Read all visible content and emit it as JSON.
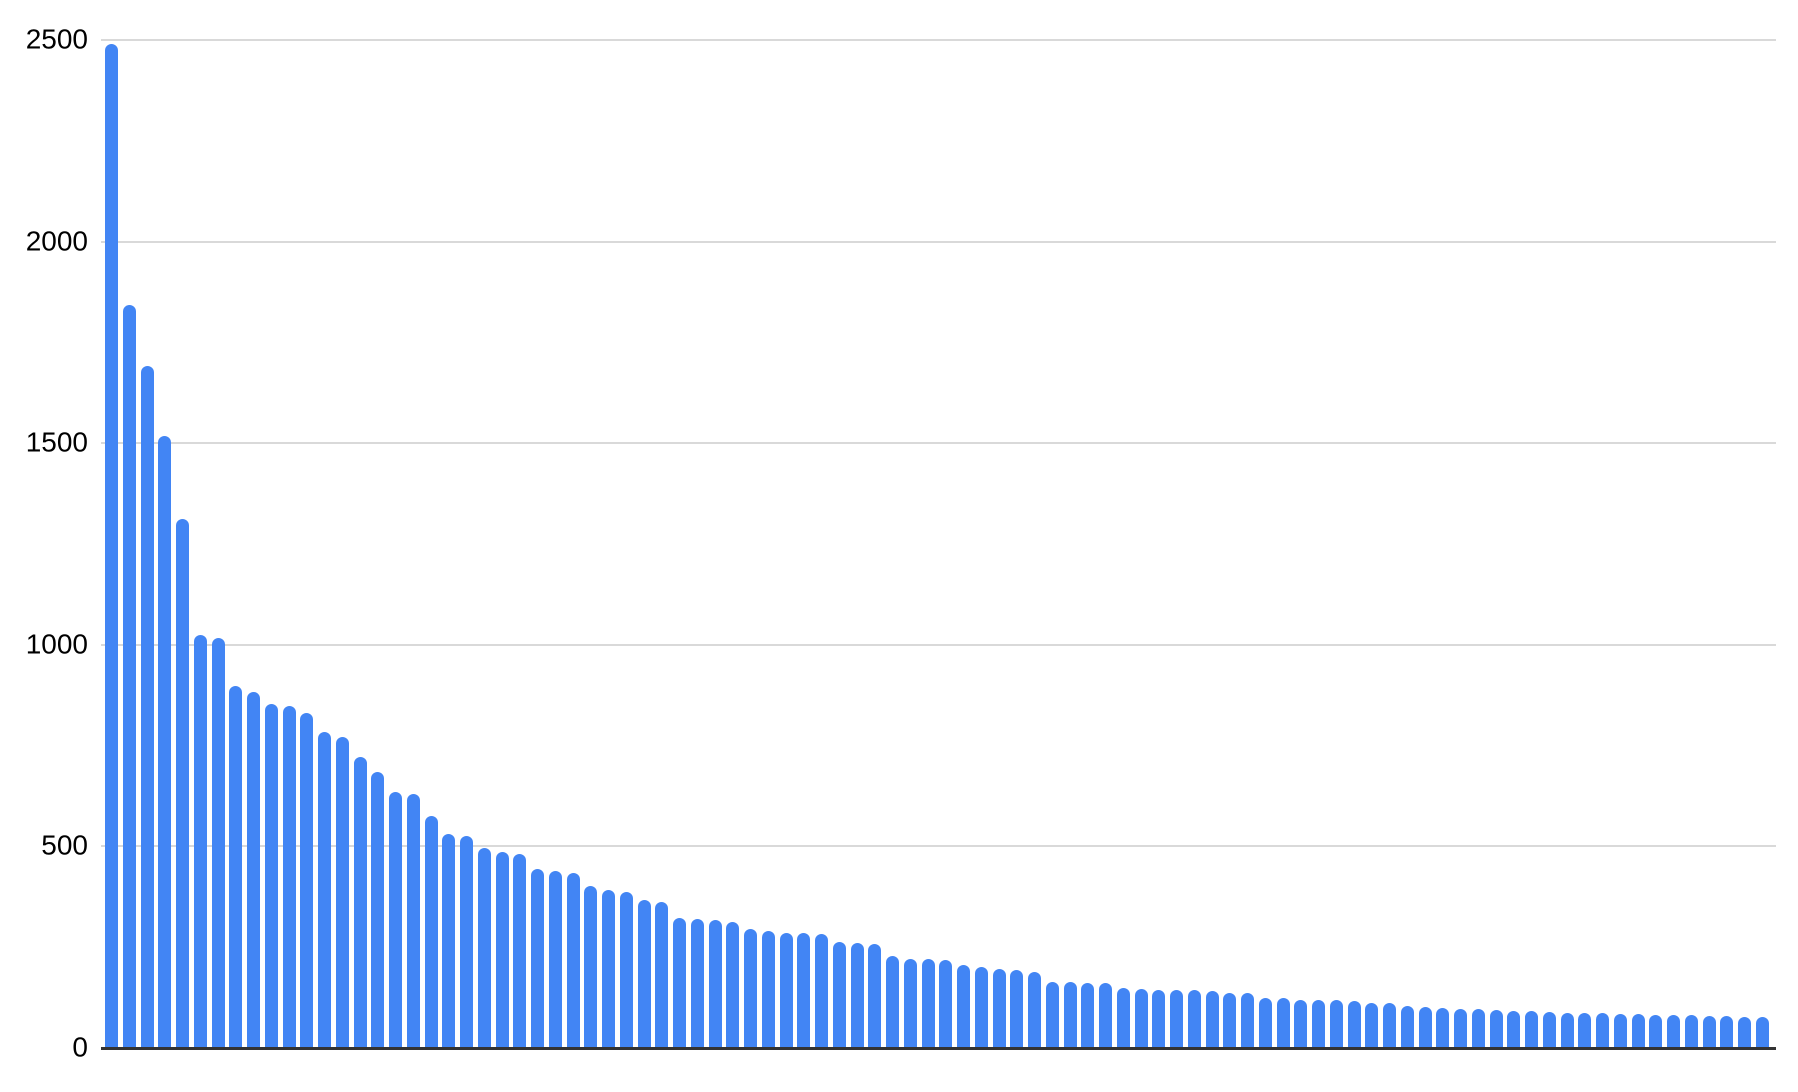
{
  "chart_data": {
    "type": "bar",
    "title": "",
    "xlabel": "",
    "ylabel": "",
    "legend": "none",
    "grid": true,
    "ylim": [
      0,
      2500
    ],
    "y_ticks": [
      0,
      500,
      1000,
      1500,
      2000,
      2500
    ],
    "y_tick_labels": [
      "0",
      "500",
      "1000",
      "1500",
      "2000",
      "2500"
    ],
    "x_axis_labels_visible": false,
    "categories": [],
    "series": [
      {
        "name": "values",
        "values": [
          2490,
          1843,
          1692,
          1517,
          1311,
          1025,
          1018,
          898,
          883,
          853,
          848,
          831,
          784,
          771,
          721,
          684,
          634,
          630,
          575,
          530,
          525,
          495,
          487,
          480,
          443,
          440,
          435,
          401,
          391,
          388,
          368,
          361,
          323,
          319,
          317,
          313,
          294,
          289,
          286,
          284,
          283,
          264,
          260,
          259,
          229,
          221,
          220,
          219,
          207,
          201,
          197,
          194,
          189,
          164,
          163,
          162,
          162,
          149,
          146,
          144,
          144,
          143,
          141,
          136,
          136,
          124,
          124,
          119,
          118,
          118,
          117,
          112,
          112,
          104,
          101,
          99,
          97,
          96,
          94,
          92,
          91,
          89,
          88,
          87,
          86,
          85,
          84,
          83,
          82,
          81,
          80,
          79,
          78,
          76
        ]
      }
    ]
  },
  "colors": {
    "bar": "#4285F4",
    "gridline": "#d9d9d9",
    "axis_line": "#333333",
    "tick_text": "#000000",
    "background": "#ffffff"
  }
}
